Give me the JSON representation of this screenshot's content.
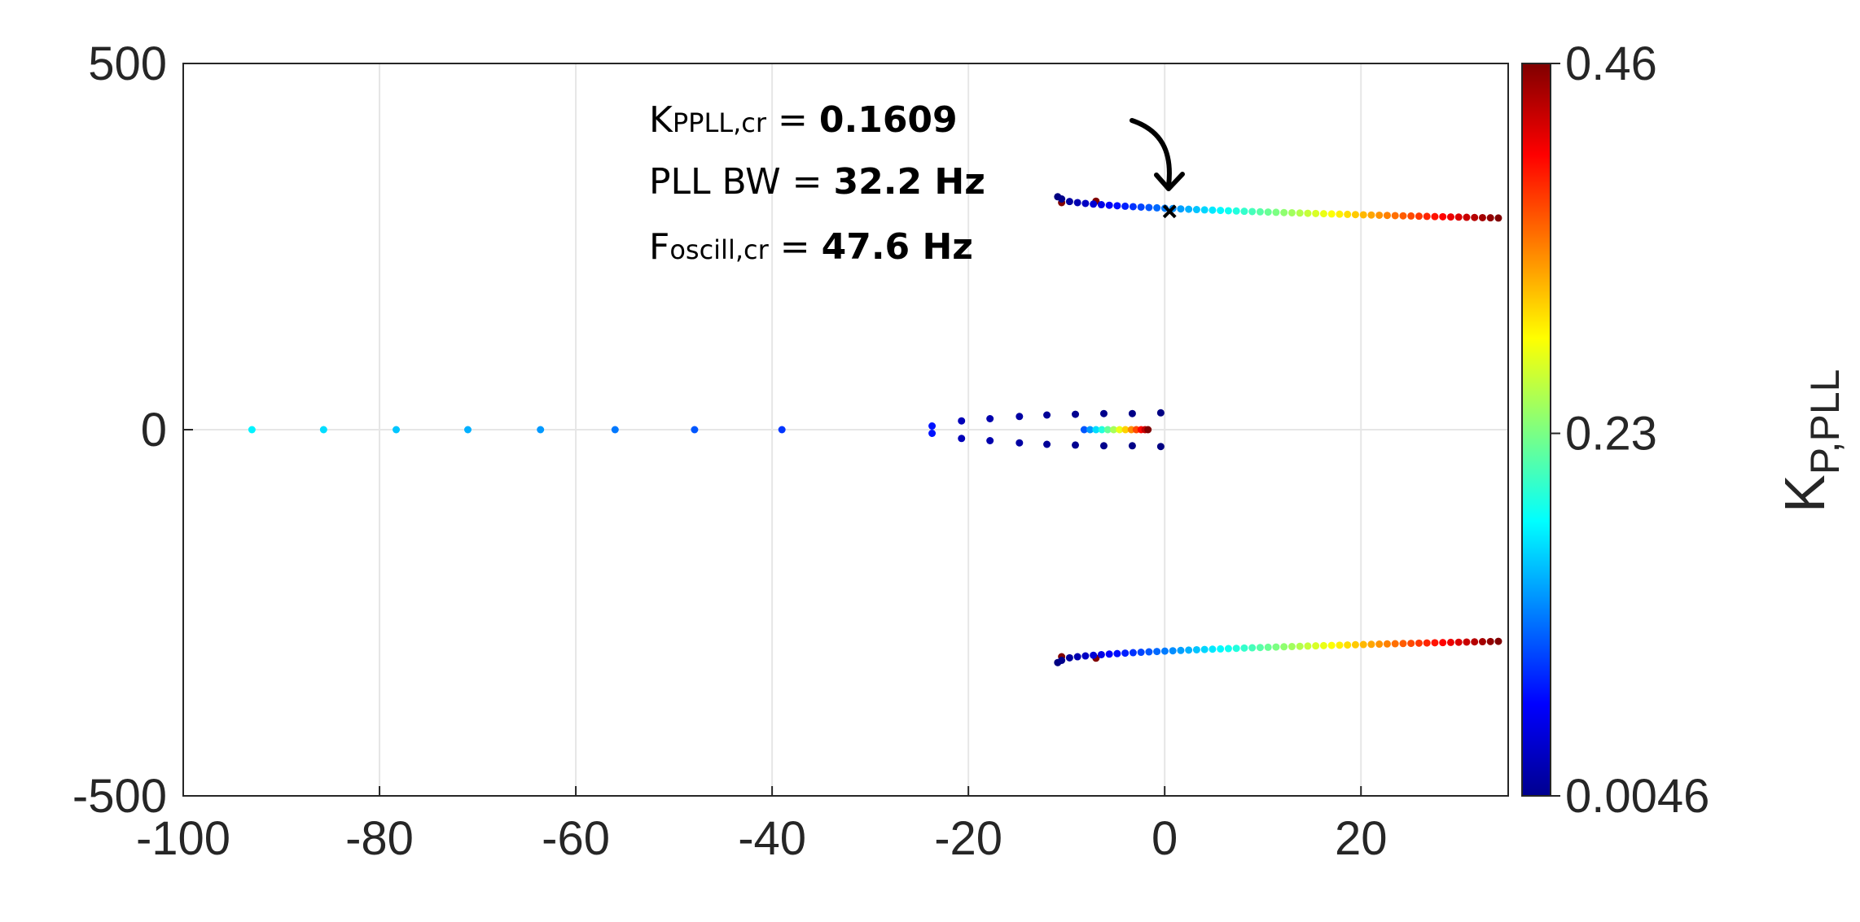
{
  "chart_data": {
    "type": "scatter",
    "title": "",
    "xlabel": "",
    "ylabel": "",
    "xlim": [
      -100,
      35
    ],
    "ylim": [
      -500,
      500
    ],
    "xticks": [
      "-100",
      "-80",
      "-60",
      "-40",
      "-20",
      "0",
      "20"
    ],
    "xtick_values": [
      -100,
      -80,
      -60,
      -40,
      -20,
      0,
      20
    ],
    "yticks": [
      "-500",
      "0",
      "500"
    ],
    "ytick_values": [
      -500,
      0,
      500
    ],
    "grid": true,
    "colorbar": {
      "label_main": "K",
      "label_sub": "P,PLL",
      "colormap": "jet",
      "min": 0.0046,
      "max": 0.46,
      "ticks": [
        "0.46",
        "0.23",
        "0.0046"
      ],
      "tick_values": [
        0.46,
        0.23,
        0.0046
      ]
    },
    "series": [
      {
        "description_free": true,
        "points": [
          {
            "x": -93,
            "y": 0,
            "k": 0.17
          },
          {
            "x": -85.7,
            "y": 0,
            "k": 0.16
          },
          {
            "x": -78.3,
            "y": 0,
            "k": 0.15
          },
          {
            "x": -71,
            "y": 0,
            "k": 0.14
          },
          {
            "x": -63.6,
            "y": 0,
            "k": 0.13
          },
          {
            "x": -56,
            "y": 0,
            "k": 0.115
          },
          {
            "x": -47.9,
            "y": 0,
            "k": 0.1
          },
          {
            "x": -39,
            "y": 0,
            "k": 0.085
          },
          {
            "x": -23.7,
            "y": 5,
            "k": 0.07
          },
          {
            "x": -23.7,
            "y": -5,
            "k": 0.07
          },
          {
            "x": -20.7,
            "y": 12,
            "k": 0.03
          },
          {
            "x": -20.7,
            "y": -12,
            "k": 0.03
          },
          {
            "x": -17.8,
            "y": 15,
            "k": 0.025
          },
          {
            "x": -17.8,
            "y": -15,
            "k": 0.025
          },
          {
            "x": -14.8,
            "y": 18,
            "k": 0.02
          },
          {
            "x": -14.8,
            "y": -18,
            "k": 0.02
          },
          {
            "x": -12,
            "y": 20,
            "k": 0.015
          },
          {
            "x": -12,
            "y": -20,
            "k": 0.015
          },
          {
            "x": -9.1,
            "y": 21,
            "k": 0.012
          },
          {
            "x": -9.1,
            "y": -21,
            "k": 0.012
          },
          {
            "x": -6.2,
            "y": 22,
            "k": 0.01
          },
          {
            "x": -6.2,
            "y": -22,
            "k": 0.01
          },
          {
            "x": -3.3,
            "y": 22,
            "k": 0.008
          },
          {
            "x": -3.3,
            "y": -22,
            "k": 0.008
          },
          {
            "x": -0.4,
            "y": 23,
            "k": 0.006
          },
          {
            "x": -0.4,
            "y": -23,
            "k": 0.006
          },
          {
            "x": -8.2,
            "y": 0,
            "k": 0.1
          },
          {
            "x": -7.6,
            "y": 0,
            "k": 0.13
          },
          {
            "x": -7.0,
            "y": 0,
            "k": 0.16
          },
          {
            "x": -6.4,
            "y": 0,
            "k": 0.19
          },
          {
            "x": -5.8,
            "y": 0,
            "k": 0.22
          },
          {
            "x": -5.2,
            "y": 0,
            "k": 0.25
          },
          {
            "x": -4.6,
            "y": 0,
            "k": 0.28
          },
          {
            "x": -4.0,
            "y": 0,
            "k": 0.31
          },
          {
            "x": -3.4,
            "y": 0,
            "k": 0.34
          },
          {
            "x": -2.9,
            "y": 0,
            "k": 0.37
          },
          {
            "x": -2.4,
            "y": 0,
            "k": 0.4
          },
          {
            "x": -2.0,
            "y": 0,
            "k": 0.43
          },
          {
            "x": -1.7,
            "y": 0,
            "k": 0.46
          },
          {
            "x": -10.9,
            "y": 318,
            "k": 0.0046
          },
          {
            "x": -10.9,
            "y": -318,
            "k": 0.0046
          },
          {
            "x": -10.5,
            "y": 310,
            "k": 0.46
          },
          {
            "x": -10.5,
            "y": -310,
            "k": 0.46
          },
          {
            "x": -7.0,
            "y": 312,
            "k": 0.46
          },
          {
            "x": -7.0,
            "y": -312,
            "k": 0.46
          }
        ]
      }
    ],
    "branch": {
      "k_start": 0.01,
      "k_end": 0.46,
      "count": 56,
      "x_start": -10.5,
      "x_end": 34,
      "y_start": 315,
      "y_end": 289
    },
    "critical_point": {
      "x": 0.5,
      "y": 298,
      "marker": "x"
    },
    "annotation": {
      "line1_main": "K",
      "line1_sub": "PPLL,cr",
      "line1_eq": " = ",
      "line1_value": "0.1609",
      "line2_label": "PLL BW = ",
      "line2_value": "32.2 Hz",
      "line3_main": "F",
      "line3_sub": "oscill,cr",
      "line3_eq": " = ",
      "line3_value": "47.6 Hz"
    }
  }
}
